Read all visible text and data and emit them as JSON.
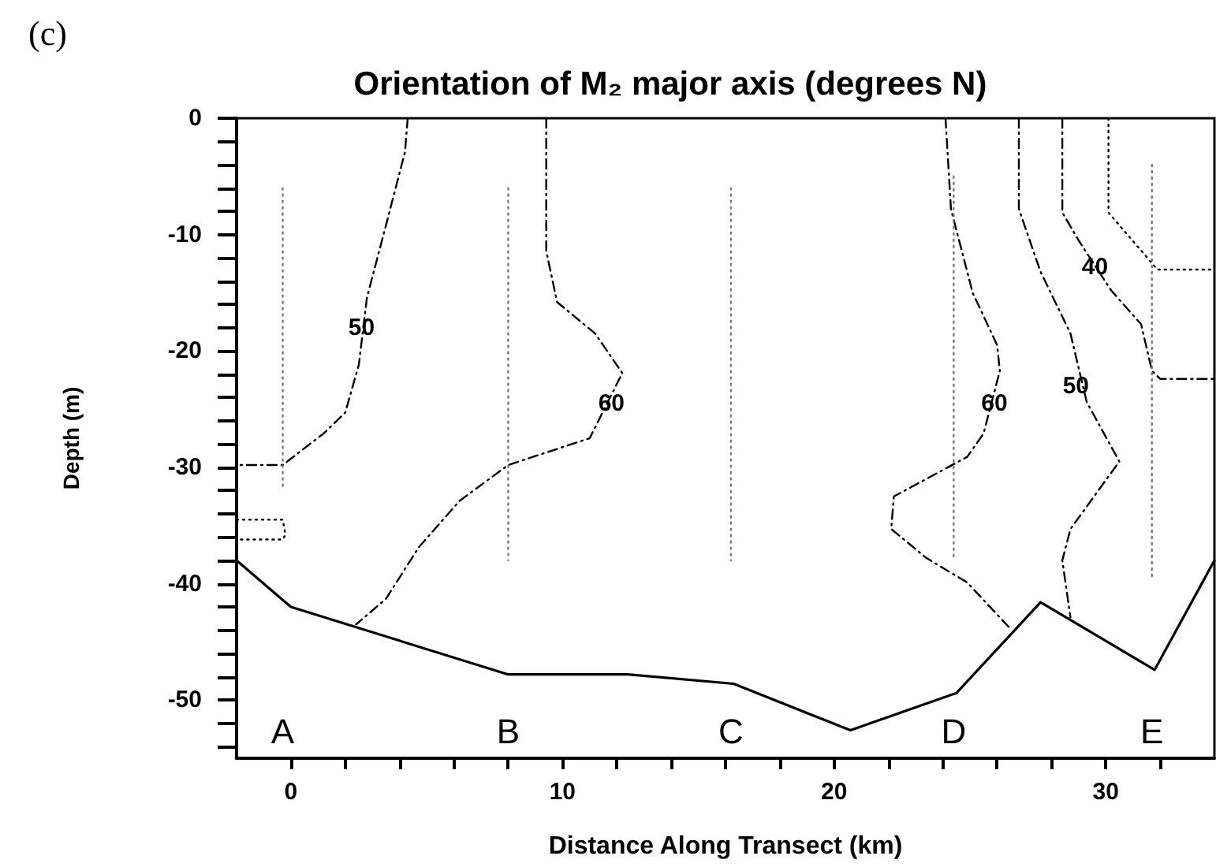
{
  "chart_data": {
    "type": "line",
    "title": "Orientation of M₂ major axis (degrees N)",
    "xlabel": "Distance Along Transect (km)",
    "ylabel": "Depth (m)",
    "annotations": [
      "(c)",
      {
        "text": "50",
        "x": 2.6,
        "y": -18
      },
      {
        "text": "60",
        "x": 11.8,
        "y": -24.5
      },
      {
        "text": "60",
        "x": 25.9,
        "y": -24.5
      },
      {
        "text": "50",
        "x": 28.9,
        "y": -23
      },
      {
        "text": "40",
        "x": 29.6,
        "y": -12.8
      }
    ],
    "xlim": [
      -2,
      34
    ],
    "xticks": [
      0,
      {
        "value": 2,
        "label": null
      },
      {
        "value": 4,
        "label": null
      },
      {
        "value": 6,
        "label": null
      },
      {
        "value": 8,
        "label": null
      },
      10,
      {
        "value": 12,
        "label": null
      },
      {
        "value": 14,
        "label": null
      },
      {
        "value": 16,
        "label": null
      },
      {
        "value": 18,
        "label": null
      },
      20,
      {
        "value": 22,
        "label": null
      },
      {
        "value": 24,
        "label": null
      },
      {
        "value": 26,
        "label": null
      },
      {
        "value": 28,
        "label": null
      },
      30,
      {
        "value": 32,
        "label": null
      }
    ],
    "ylim": [
      -55,
      0
    ],
    "yticks": [
      0,
      {
        "value": -2,
        "label": null
      },
      {
        "value": -4,
        "label": null
      },
      {
        "value": -6,
        "label": null
      },
      {
        "value": -8,
        "label": null
      },
      -10,
      {
        "value": -12,
        "label": null
      },
      {
        "value": -14,
        "label": null
      },
      {
        "value": -16,
        "label": null
      },
      {
        "value": -18,
        "label": null
      },
      -20,
      {
        "value": -22,
        "label": null
      },
      {
        "value": -24,
        "label": null
      },
      {
        "value": -26,
        "label": null
      },
      {
        "value": -28,
        "label": null
      },
      -30,
      {
        "value": -32,
        "label": null
      },
      {
        "value": -34,
        "label": null
      },
      {
        "value": -36,
        "label": null
      },
      {
        "value": -38,
        "label": null
      },
      -40,
      {
        "value": -42,
        "label": null
      },
      {
        "value": -44,
        "label": null
      },
      {
        "value": -46,
        "label": null
      },
      {
        "value": -48,
        "label": null
      },
      -50,
      {
        "value": -52,
        "label": null
      },
      {
        "value": -54,
        "label": null
      }
    ],
    "grid": false,
    "legend": false,
    "marker": "none",
    "series": [
      {
        "color": "#000000",
        "line_style": "solid",
        "x": [
          -2,
          0,
          8,
          12.4,
          16.3,
          20.6,
          24.5,
          27.6,
          31.8,
          34
        ],
        "values": [
          -38,
          -42,
          -47.8,
          -47.8,
          -48.6,
          -52.6,
          -49.4,
          -41.6,
          -47.4,
          -38
        ]
      },
      {
        "color": "#000000",
        "line_style": "dashed",
        "x": [
          4.3,
          4.2,
          3.5,
          2.8,
          2.5,
          2.0,
          1.2,
          -0.3,
          -2
        ],
        "values": [
          0,
          -2.9,
          -9.2,
          -15.4,
          -21.2,
          -25.3,
          -27.1,
          -29.8,
          -29.8
        ]
      },
      {
        "color": "#000000",
        "line_style": "dotted",
        "x": [
          -2,
          -0.3,
          -0.2,
          -0.3,
          -2
        ],
        "values": [
          -34.5,
          -34.5,
          -35.8,
          -36.2,
          -36.2
        ]
      },
      {
        "color": "#000000",
        "line_style": "dashed",
        "x": [
          9.4,
          9.4,
          9.8,
          11.2,
          12.2,
          11.0,
          8.0,
          6.2,
          4.7,
          3.5,
          2.4
        ],
        "values": [
          0,
          -11.4,
          -15.8,
          -18.5,
          -21.9,
          -27.5,
          -29.8,
          -32.9,
          -36.9,
          -41.3,
          -43.5
        ]
      },
      {
        "color": "#000000",
        "line_style": "dashed",
        "x": [
          24.1,
          24.3,
          25.1,
          26.0,
          26.1,
          25.5,
          24.9,
          22.2,
          22.1,
          23.4,
          24.9,
          26.5
        ],
        "values": [
          0,
          -7.8,
          -15.0,
          -19.5,
          -21.7,
          -27.1,
          -29.1,
          -32.5,
          -35.3,
          -37.8,
          -39.9,
          -43.9
        ]
      },
      {
        "color": "#000000",
        "line_style": "dashed",
        "x": [
          26.8,
          26.8,
          27.6,
          28.7,
          29.3,
          30.5,
          28.7,
          28.4,
          28.7
        ],
        "values": [
          0,
          -7.8,
          -13.2,
          -18.5,
          -24.4,
          -29.5,
          -35.3,
          -38.0,
          -42.9
        ]
      },
      {
        "color": "#000000",
        "line_style": "dashed",
        "x": [
          28.4,
          28.4,
          29.0,
          30.2,
          31.3,
          31.7,
          32.0,
          34
        ],
        "values": [
          0,
          -8.1,
          -10.5,
          -14.8,
          -17.7,
          -21.7,
          -22.4,
          -22.4
        ]
      },
      {
        "color": "#000000",
        "line_style": "dotted",
        "x": [
          30.1,
          30.1,
          30.5,
          31.9,
          34
        ],
        "values": [
          0,
          -8.1,
          -9.2,
          -13.0,
          -13.0
        ]
      },
      {
        "name": "A",
        "color": "#777777",
        "line_style": "dotted",
        "x": [
          -0.3,
          -0.3
        ],
        "values": [
          -6,
          -32
        ]
      },
      {
        "name": "B",
        "color": "#777777",
        "line_style": "dotted",
        "x": [
          8,
          8
        ],
        "values": [
          -6,
          -38
        ]
      },
      {
        "name": "C",
        "color": "#777777",
        "line_style": "dotted",
        "x": [
          16.2,
          16.2
        ],
        "values": [
          -6,
          -38
        ]
      },
      {
        "name": "D",
        "color": "#777777",
        "line_style": "dotted",
        "x": [
          24.4,
          24.4
        ],
        "values": [
          -5,
          -38
        ]
      },
      {
        "name": "E",
        "color": "#777777",
        "line_style": "dotted",
        "x": [
          31.7,
          31.7
        ],
        "values": [
          -4,
          -39.6
        ]
      }
    ]
  }
}
